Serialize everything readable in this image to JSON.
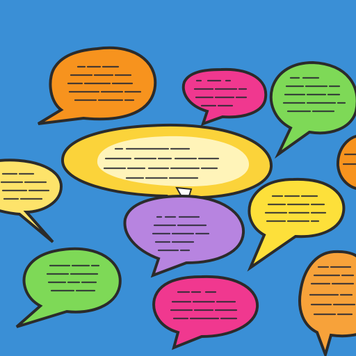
{
  "scene": {
    "background": "#3a8fd6",
    "outline": "#2b2b2b"
  },
  "bubbles": [
    {
      "id": "orange-top-left",
      "fill": "#f7931e"
    },
    {
      "id": "magenta-top-center",
      "fill": "#f0388f"
    },
    {
      "id": "green-top-right",
      "fill": "#7ed957"
    },
    {
      "id": "orange-right-edge",
      "fill": "#f7931e"
    },
    {
      "id": "yellow-center-large",
      "fill": "#fbd33a"
    },
    {
      "id": "yellow-left",
      "fill": "#fde36a"
    },
    {
      "id": "yellow-right",
      "fill": "#fde03a"
    },
    {
      "id": "purple-center",
      "fill": "#b784e0"
    },
    {
      "id": "green-bottom-left",
      "fill": "#7ed957"
    },
    {
      "id": "magenta-bottom-center",
      "fill": "#f0388f"
    },
    {
      "id": "orange-bottom-right",
      "fill": "#f7a23a"
    }
  ]
}
